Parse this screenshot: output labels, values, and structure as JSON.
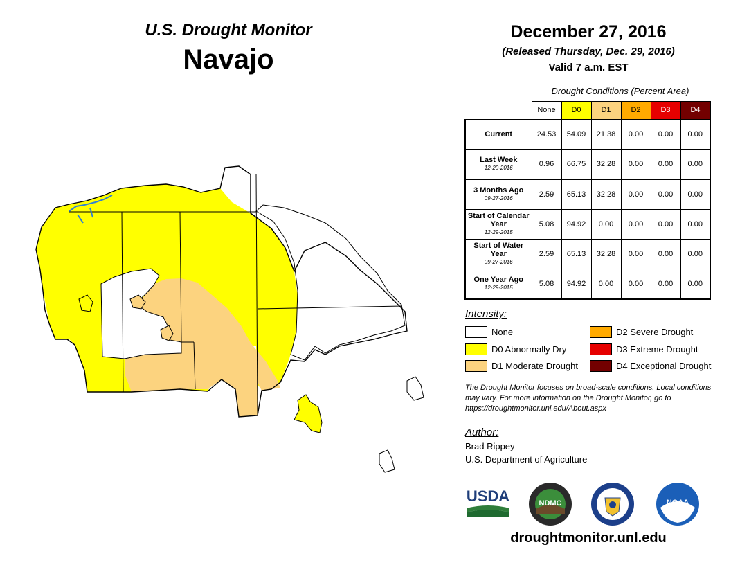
{
  "header": {
    "brand": "U.S. Drought Monitor",
    "region": "Navajo",
    "date": "December 27, 2016",
    "released": "(Released Thursday, Dec. 29, 2016)",
    "valid": "Valid 7 a.m. EST"
  },
  "table": {
    "title": "Drought Conditions (Percent Area)",
    "columns": [
      "None",
      "D0",
      "D1",
      "D2",
      "D3",
      "D4"
    ],
    "column_colors": [
      "#ffffff",
      "#ffff00",
      "#fcd37f",
      "#ffaa00",
      "#e60000",
      "#730000"
    ],
    "rows": [
      {
        "label": "Current",
        "date": "",
        "values": [
          "24.53",
          "54.09",
          "21.38",
          "0.00",
          "0.00",
          "0.00"
        ]
      },
      {
        "label": "Last Week",
        "date": "12-20-2016",
        "values": [
          "0.96",
          "66.75",
          "32.28",
          "0.00",
          "0.00",
          "0.00"
        ]
      },
      {
        "label": "3 Months Ago",
        "date": "09-27-2016",
        "values": [
          "2.59",
          "65.13",
          "32.28",
          "0.00",
          "0.00",
          "0.00"
        ]
      },
      {
        "label": "Start of Calendar Year",
        "date": "12-29-2015",
        "values": [
          "5.08",
          "94.92",
          "0.00",
          "0.00",
          "0.00",
          "0.00"
        ]
      },
      {
        "label": "Start of Water Year",
        "date": "09-27-2016",
        "values": [
          "2.59",
          "65.13",
          "32.28",
          "0.00",
          "0.00",
          "0.00"
        ]
      },
      {
        "label": "One Year Ago",
        "date": "12-29-2015",
        "values": [
          "5.08",
          "94.92",
          "0.00",
          "0.00",
          "0.00",
          "0.00"
        ]
      }
    ]
  },
  "legend": {
    "title": "Intensity:",
    "items": [
      {
        "label": "None",
        "color": "#ffffff"
      },
      {
        "label": "D0 Abnormally Dry",
        "color": "#ffff00"
      },
      {
        "label": "D1 Moderate Drought",
        "color": "#fcd37f"
      },
      {
        "label": "D2 Severe Drought",
        "color": "#ffaa00"
      },
      {
        "label": "D3 Extreme Drought",
        "color": "#e60000"
      },
      {
        "label": "D4 Exceptional Drought",
        "color": "#730000"
      }
    ]
  },
  "note": "The Drought Monitor focuses on broad-scale conditions. Local conditions may vary. For more information on the Drought Monitor, go to https://droughtmonitor.unl.edu/About.aspx",
  "author": {
    "title": "Author:",
    "name": "Brad Rippey",
    "org": "U.S. Department of Agriculture"
  },
  "logos": {
    "usda": "USDA",
    "ndmc": "NDMC",
    "noaa": "NOAA"
  },
  "website": "droughtmonitor.unl.edu"
}
